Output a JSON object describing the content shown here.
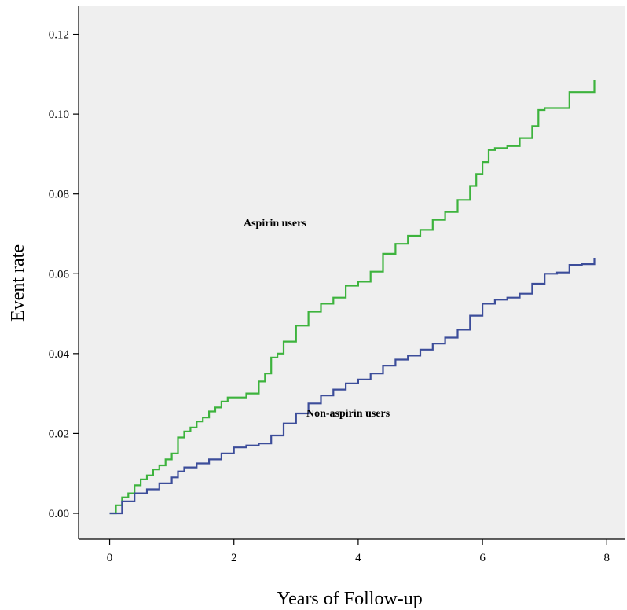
{
  "chart_data": {
    "type": "line",
    "xlabel": "Years of Follow-up",
    "ylabel": "Event rate",
    "xlim": [
      -0.5,
      8.3
    ],
    "ylim": [
      -0.0065,
      0.127
    ],
    "xticks": [
      0,
      2,
      4,
      6,
      8
    ],
    "xtick_labels": [
      "0",
      "2",
      "4",
      "6",
      "8"
    ],
    "yticks": [
      0.0,
      0.02,
      0.04,
      0.06,
      0.08,
      0.1,
      0.12
    ],
    "ytick_labels": [
      "0.00",
      "0.02",
      "0.04",
      "0.06",
      "0.08",
      "0.10",
      "0.12"
    ],
    "grid": false,
    "background": "#efefef",
    "series": [
      {
        "color": "#3db33d",
        "x": [
          0,
          0.1,
          0.2,
          0.3,
          0.4,
          0.5,
          0.6,
          0.7,
          0.8,
          0.9,
          1.0,
          1.1,
          1.2,
          1.3,
          1.4,
          1.5,
          1.6,
          1.7,
          1.8,
          1.9,
          2.0,
          2.2,
          2.4,
          2.5,
          2.6,
          2.7,
          2.8,
          3.0,
          3.2,
          3.4,
          3.6,
          3.8,
          4.0,
          4.2,
          4.4,
          4.6,
          4.8,
          5.0,
          5.2,
          5.4,
          5.6,
          5.8,
          5.9,
          6.0,
          6.1,
          6.2,
          6.4,
          6.6,
          6.8,
          6.9,
          7.0,
          7.2,
          7.4,
          7.6,
          7.8,
          7.8
        ],
        "y": [
          0.0,
          0.002,
          0.004,
          0.005,
          0.007,
          0.0085,
          0.0095,
          0.011,
          0.012,
          0.0135,
          0.015,
          0.019,
          0.0205,
          0.0215,
          0.023,
          0.024,
          0.0255,
          0.0265,
          0.028,
          0.029,
          0.029,
          0.03,
          0.033,
          0.035,
          0.039,
          0.04,
          0.043,
          0.047,
          0.0505,
          0.0525,
          0.054,
          0.057,
          0.058,
          0.0605,
          0.065,
          0.0675,
          0.0695,
          0.071,
          0.0735,
          0.0755,
          0.0785,
          0.082,
          0.085,
          0.088,
          0.091,
          0.0915,
          0.092,
          0.094,
          0.097,
          0.101,
          0.1015,
          0.1015,
          0.1055,
          0.1055,
          0.1055,
          0.1085
        ]
      },
      {
        "color": "#3c4d9a",
        "x": [
          0,
          0.2,
          0.4,
          0.6,
          0.8,
          1.0,
          1.1,
          1.2,
          1.4,
          1.6,
          1.8,
          2.0,
          2.2,
          2.4,
          2.6,
          2.8,
          3.0,
          3.2,
          3.4,
          3.6,
          3.8,
          4.0,
          4.2,
          4.4,
          4.6,
          4.8,
          5.0,
          5.2,
          5.4,
          5.6,
          5.8,
          6.0,
          6.2,
          6.4,
          6.6,
          6.8,
          7.0,
          7.2,
          7.4,
          7.6,
          7.8,
          7.8
        ],
        "y": [
          0.0,
          0.003,
          0.005,
          0.006,
          0.0075,
          0.009,
          0.0105,
          0.0115,
          0.0125,
          0.0135,
          0.015,
          0.0165,
          0.017,
          0.0175,
          0.0195,
          0.0225,
          0.025,
          0.0275,
          0.0295,
          0.031,
          0.0325,
          0.0335,
          0.035,
          0.037,
          0.0385,
          0.0395,
          0.041,
          0.0425,
          0.044,
          0.046,
          0.0495,
          0.0525,
          0.0535,
          0.054,
          0.055,
          0.0575,
          0.06,
          0.0603,
          0.0622,
          0.0624,
          0.0625,
          0.064
        ]
      }
    ],
    "annotations": [
      "Aspirin users",
      "Non-aspirin users"
    ]
  }
}
